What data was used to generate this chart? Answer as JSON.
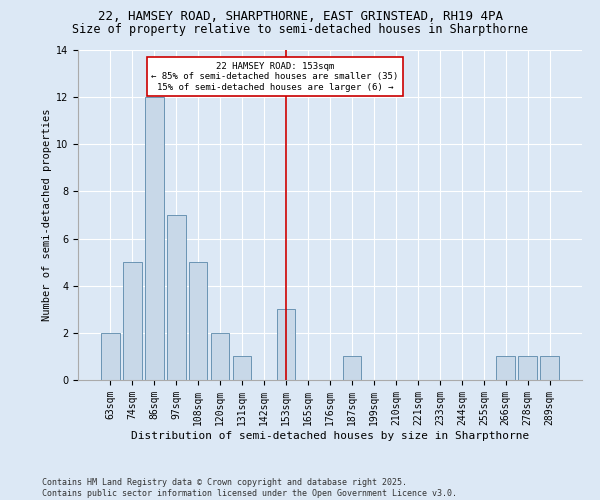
{
  "title1": "22, HAMSEY ROAD, SHARPTHORNE, EAST GRINSTEAD, RH19 4PA",
  "title2": "Size of property relative to semi-detached houses in Sharpthorne",
  "xlabel": "Distribution of semi-detached houses by size in Sharpthorne",
  "ylabel": "Number of semi-detached properties",
  "categories": [
    "63sqm",
    "74sqm",
    "86sqm",
    "97sqm",
    "108sqm",
    "120sqm",
    "131sqm",
    "142sqm",
    "153sqm",
    "165sqm",
    "176sqm",
    "187sqm",
    "199sqm",
    "210sqm",
    "221sqm",
    "233sqm",
    "244sqm",
    "255sqm",
    "266sqm",
    "278sqm",
    "289sqm"
  ],
  "values": [
    2,
    5,
    12,
    7,
    5,
    2,
    1,
    0,
    3,
    0,
    0,
    1,
    0,
    0,
    0,
    0,
    0,
    0,
    1,
    1,
    1
  ],
  "bar_color": "#c8d8e8",
  "bar_edge_color": "#5a88aa",
  "highlight_index": 8,
  "highlight_color": "#cc0000",
  "annotation_text": "22 HAMSEY ROAD: 153sqm\n← 85% of semi-detached houses are smaller (35)\n15% of semi-detached houses are larger (6) →",
  "annotation_box_color": "#ffffff",
  "annotation_box_edge": "#cc0000",
  "footer": "Contains HM Land Registry data © Crown copyright and database right 2025.\nContains public sector information licensed under the Open Government Licence v3.0.",
  "background_color": "#dce8f5",
  "ylim": [
    0,
    14
  ],
  "yticks": [
    0,
    2,
    4,
    6,
    8,
    10,
    12,
    14
  ],
  "title1_fontsize": 9,
  "title2_fontsize": 8.5,
  "xlabel_fontsize": 8,
  "ylabel_fontsize": 7.5,
  "tick_fontsize": 7,
  "annotation_fontsize": 6.5,
  "footer_fontsize": 6
}
